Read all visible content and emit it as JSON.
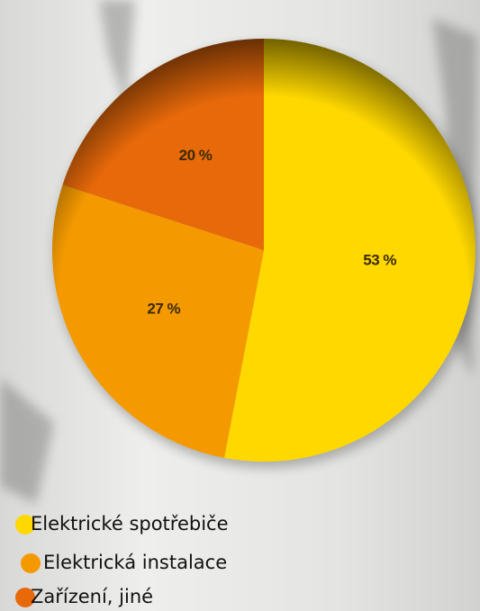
{
  "chart_data": {
    "type": "pie",
    "categories": [
      "Elektrické spotřebiče",
      "Elektrická instalace",
      "Zařízení, jiné"
    ],
    "values": [
      53,
      27,
      20
    ],
    "value_labels": [
      "53 %",
      "27 %",
      "20 %"
    ],
    "colors": [
      "#FFD800",
      "#F49A00",
      "#E8690A"
    ],
    "legend": "bottom-left"
  }
}
